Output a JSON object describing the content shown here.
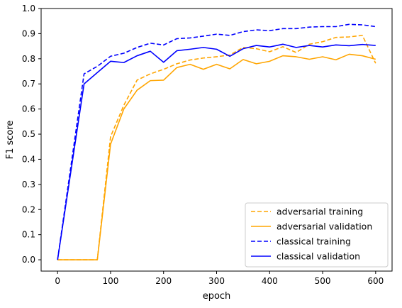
{
  "chart_data": {
    "type": "line",
    "title": "",
    "xlabel": "epoch",
    "ylabel": "F1 score",
    "xlim": [
      -31,
      631
    ],
    "ylim": [
      -0.045,
      1.0
    ],
    "xticks": [
      0,
      100,
      200,
      300,
      400,
      500,
      600
    ],
    "xtick_labels": [
      "0",
      "100",
      "200",
      "300",
      "400",
      "500",
      "600"
    ],
    "yticks": [
      0.0,
      0.1,
      0.2,
      0.3,
      0.4,
      0.5,
      0.6,
      0.7,
      0.8,
      0.9,
      1.0
    ],
    "ytick_labels": [
      "0.0",
      "0.1",
      "0.2",
      "0.3",
      "0.4",
      "0.5",
      "0.6",
      "0.7",
      "0.8",
      "0.9",
      "1.0"
    ],
    "grid": false,
    "legend_position": "lower-right",
    "series": [
      {
        "name": "adversarial training",
        "color": "#ffa500",
        "dash": "dashed",
        "x": [
          0,
          25,
          50,
          75,
          100,
          125,
          150,
          175,
          200,
          225,
          250,
          275,
          300,
          325,
          350,
          375,
          400,
          425,
          450,
          475,
          500,
          525,
          550,
          575,
          600
        ],
        "y": [
          0.0,
          0.0,
          0.0,
          0.0,
          0.49,
          0.615,
          0.715,
          0.74,
          0.758,
          0.78,
          0.795,
          0.803,
          0.808,
          0.815,
          0.845,
          0.84,
          0.828,
          0.848,
          0.825,
          0.858,
          0.868,
          0.885,
          0.887,
          0.893,
          0.782
        ]
      },
      {
        "name": "adversarial validation",
        "color": "#ffa500",
        "dash": "solid",
        "x": [
          0,
          25,
          50,
          75,
          100,
          125,
          150,
          175,
          200,
          225,
          250,
          275,
          300,
          325,
          350,
          375,
          400,
          425,
          450,
          475,
          500,
          525,
          550,
          575,
          600
        ],
        "y": [
          0.0,
          0.0,
          0.0,
          0.0,
          0.46,
          0.6,
          0.675,
          0.713,
          0.715,
          0.765,
          0.778,
          0.758,
          0.778,
          0.76,
          0.797,
          0.78,
          0.79,
          0.812,
          0.808,
          0.798,
          0.808,
          0.796,
          0.818,
          0.812,
          0.798
        ]
      },
      {
        "name": "classical training",
        "color": "#0000ff",
        "dash": "dashed",
        "x": [
          0,
          50,
          75,
          100,
          125,
          150,
          175,
          200,
          225,
          250,
          275,
          300,
          325,
          350,
          375,
          400,
          425,
          450,
          475,
          500,
          525,
          550,
          575,
          600
        ],
        "y": [
          0.0,
          0.74,
          0.77,
          0.81,
          0.822,
          0.845,
          0.862,
          0.855,
          0.88,
          0.883,
          0.89,
          0.898,
          0.893,
          0.908,
          0.915,
          0.912,
          0.92,
          0.92,
          0.926,
          0.928,
          0.928,
          0.937,
          0.935,
          0.928
        ]
      },
      {
        "name": "classical validation",
        "color": "#0000ff",
        "dash": "solid",
        "x": [
          0,
          50,
          75,
          100,
          125,
          150,
          175,
          200,
          225,
          250,
          275,
          300,
          325,
          350,
          375,
          400,
          425,
          450,
          475,
          500,
          525,
          550,
          575,
          600
        ],
        "y": [
          0.0,
          0.7,
          0.745,
          0.79,
          0.785,
          0.812,
          0.83,
          0.786,
          0.832,
          0.838,
          0.845,
          0.838,
          0.81,
          0.84,
          0.853,
          0.847,
          0.858,
          0.845,
          0.853,
          0.847,
          0.855,
          0.852,
          0.857,
          0.853
        ]
      }
    ]
  }
}
